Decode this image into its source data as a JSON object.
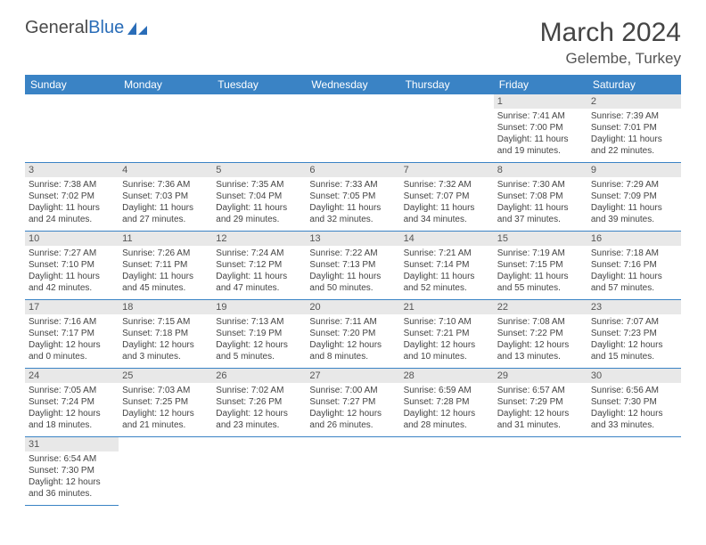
{
  "logo": {
    "text_a": "General",
    "text_b": "Blue"
  },
  "title": "March 2024",
  "location": "Gelembe, Turkey",
  "columns": [
    "Sunday",
    "Monday",
    "Tuesday",
    "Wednesday",
    "Thursday",
    "Friday",
    "Saturday"
  ],
  "colors": {
    "header_bg": "#3a83c5",
    "row_border": "#3a83c5"
  },
  "weeks": [
    [
      {
        "day": "",
        "lines": []
      },
      {
        "day": "",
        "lines": []
      },
      {
        "day": "",
        "lines": []
      },
      {
        "day": "",
        "lines": []
      },
      {
        "day": "",
        "lines": []
      },
      {
        "day": "1",
        "lines": [
          "Sunrise: 7:41 AM",
          "Sunset: 7:00 PM",
          "Daylight: 11 hours and 19 minutes."
        ]
      },
      {
        "day": "2",
        "lines": [
          "Sunrise: 7:39 AM",
          "Sunset: 7:01 PM",
          "Daylight: 11 hours and 22 minutes."
        ]
      }
    ],
    [
      {
        "day": "3",
        "lines": [
          "Sunrise: 7:38 AM",
          "Sunset: 7:02 PM",
          "Daylight: 11 hours and 24 minutes."
        ]
      },
      {
        "day": "4",
        "lines": [
          "Sunrise: 7:36 AM",
          "Sunset: 7:03 PM",
          "Daylight: 11 hours and 27 minutes."
        ]
      },
      {
        "day": "5",
        "lines": [
          "Sunrise: 7:35 AM",
          "Sunset: 7:04 PM",
          "Daylight: 11 hours and 29 minutes."
        ]
      },
      {
        "day": "6",
        "lines": [
          "Sunrise: 7:33 AM",
          "Sunset: 7:05 PM",
          "Daylight: 11 hours and 32 minutes."
        ]
      },
      {
        "day": "7",
        "lines": [
          "Sunrise: 7:32 AM",
          "Sunset: 7:07 PM",
          "Daylight: 11 hours and 34 minutes."
        ]
      },
      {
        "day": "8",
        "lines": [
          "Sunrise: 7:30 AM",
          "Sunset: 7:08 PM",
          "Daylight: 11 hours and 37 minutes."
        ]
      },
      {
        "day": "9",
        "lines": [
          "Sunrise: 7:29 AM",
          "Sunset: 7:09 PM",
          "Daylight: 11 hours and 39 minutes."
        ]
      }
    ],
    [
      {
        "day": "10",
        "lines": [
          "Sunrise: 7:27 AM",
          "Sunset: 7:10 PM",
          "Daylight: 11 hours and 42 minutes."
        ]
      },
      {
        "day": "11",
        "lines": [
          "Sunrise: 7:26 AM",
          "Sunset: 7:11 PM",
          "Daylight: 11 hours and 45 minutes."
        ]
      },
      {
        "day": "12",
        "lines": [
          "Sunrise: 7:24 AM",
          "Sunset: 7:12 PM",
          "Daylight: 11 hours and 47 minutes."
        ]
      },
      {
        "day": "13",
        "lines": [
          "Sunrise: 7:22 AM",
          "Sunset: 7:13 PM",
          "Daylight: 11 hours and 50 minutes."
        ]
      },
      {
        "day": "14",
        "lines": [
          "Sunrise: 7:21 AM",
          "Sunset: 7:14 PM",
          "Daylight: 11 hours and 52 minutes."
        ]
      },
      {
        "day": "15",
        "lines": [
          "Sunrise: 7:19 AM",
          "Sunset: 7:15 PM",
          "Daylight: 11 hours and 55 minutes."
        ]
      },
      {
        "day": "16",
        "lines": [
          "Sunrise: 7:18 AM",
          "Sunset: 7:16 PM",
          "Daylight: 11 hours and 57 minutes."
        ]
      }
    ],
    [
      {
        "day": "17",
        "lines": [
          "Sunrise: 7:16 AM",
          "Sunset: 7:17 PM",
          "Daylight: 12 hours and 0 minutes."
        ]
      },
      {
        "day": "18",
        "lines": [
          "Sunrise: 7:15 AM",
          "Sunset: 7:18 PM",
          "Daylight: 12 hours and 3 minutes."
        ]
      },
      {
        "day": "19",
        "lines": [
          "Sunrise: 7:13 AM",
          "Sunset: 7:19 PM",
          "Daylight: 12 hours and 5 minutes."
        ]
      },
      {
        "day": "20",
        "lines": [
          "Sunrise: 7:11 AM",
          "Sunset: 7:20 PM",
          "Daylight: 12 hours and 8 minutes."
        ]
      },
      {
        "day": "21",
        "lines": [
          "Sunrise: 7:10 AM",
          "Sunset: 7:21 PM",
          "Daylight: 12 hours and 10 minutes."
        ]
      },
      {
        "day": "22",
        "lines": [
          "Sunrise: 7:08 AM",
          "Sunset: 7:22 PM",
          "Daylight: 12 hours and 13 minutes."
        ]
      },
      {
        "day": "23",
        "lines": [
          "Sunrise: 7:07 AM",
          "Sunset: 7:23 PM",
          "Daylight: 12 hours and 15 minutes."
        ]
      }
    ],
    [
      {
        "day": "24",
        "lines": [
          "Sunrise: 7:05 AM",
          "Sunset: 7:24 PM",
          "Daylight: 12 hours and 18 minutes."
        ]
      },
      {
        "day": "25",
        "lines": [
          "Sunrise: 7:03 AM",
          "Sunset: 7:25 PM",
          "Daylight: 12 hours and 21 minutes."
        ]
      },
      {
        "day": "26",
        "lines": [
          "Sunrise: 7:02 AM",
          "Sunset: 7:26 PM",
          "Daylight: 12 hours and 23 minutes."
        ]
      },
      {
        "day": "27",
        "lines": [
          "Sunrise: 7:00 AM",
          "Sunset: 7:27 PM",
          "Daylight: 12 hours and 26 minutes."
        ]
      },
      {
        "day": "28",
        "lines": [
          "Sunrise: 6:59 AM",
          "Sunset: 7:28 PM",
          "Daylight: 12 hours and 28 minutes."
        ]
      },
      {
        "day": "29",
        "lines": [
          "Sunrise: 6:57 AM",
          "Sunset: 7:29 PM",
          "Daylight: 12 hours and 31 minutes."
        ]
      },
      {
        "day": "30",
        "lines": [
          "Sunrise: 6:56 AM",
          "Sunset: 7:30 PM",
          "Daylight: 12 hours and 33 minutes."
        ]
      }
    ],
    [
      {
        "day": "31",
        "lines": [
          "Sunrise: 6:54 AM",
          "Sunset: 7:30 PM",
          "Daylight: 12 hours and 36 minutes."
        ]
      },
      {
        "day": "",
        "lines": []
      },
      {
        "day": "",
        "lines": []
      },
      {
        "day": "",
        "lines": []
      },
      {
        "day": "",
        "lines": []
      },
      {
        "day": "",
        "lines": []
      },
      {
        "day": "",
        "lines": []
      }
    ]
  ]
}
